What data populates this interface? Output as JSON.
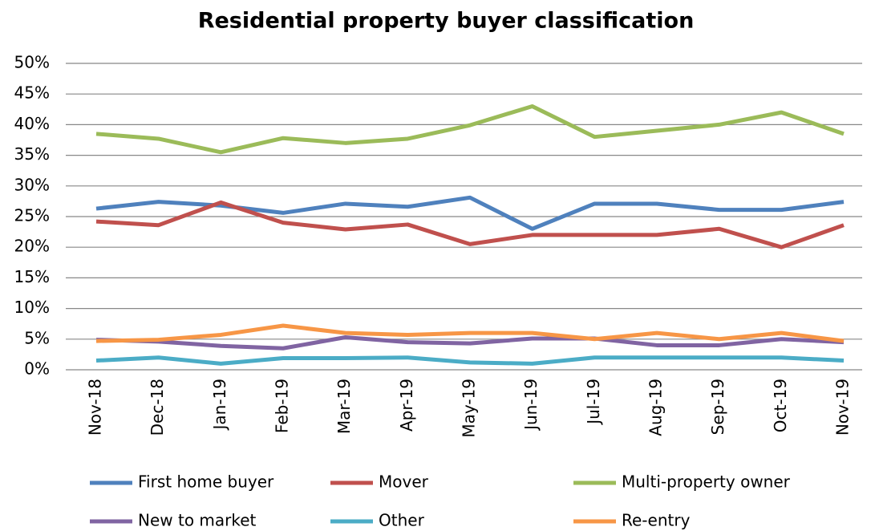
{
  "chart_data": {
    "type": "line",
    "title": "Residential property buyer classification",
    "categories": [
      "Nov-18",
      "Dec-18",
      "Jan-19",
      "Feb-19",
      "Mar-19",
      "Apr-19",
      "May-19",
      "Jun-19",
      "Jul-19",
      "Aug-19",
      "Sep-19",
      "Oct-19",
      "Nov-19"
    ],
    "series": [
      {
        "name": "First home buyer",
        "color": "#4f81bd",
        "values": [
          26.3,
          27.4,
          26.8,
          25.6,
          27.1,
          26.6,
          28.1,
          23.0,
          27.1,
          27.1,
          26.1,
          26.1,
          27.4
        ]
      },
      {
        "name": "Mover",
        "color": "#c0504d",
        "values": [
          24.2,
          23.6,
          27.3,
          24.0,
          22.9,
          23.7,
          20.5,
          22.0,
          22.0,
          22.0,
          23.0,
          20.0,
          23.6
        ]
      },
      {
        "name": "Multi-property owner",
        "color": "#9bbb59",
        "values": [
          38.5,
          37.7,
          35.5,
          37.8,
          37.0,
          37.7,
          39.9,
          43.0,
          38.0,
          39.0,
          40.0,
          42.0,
          38.5
        ]
      },
      {
        "name": "New to market",
        "color": "#8064a2",
        "values": [
          4.9,
          4.6,
          3.9,
          3.5,
          5.3,
          4.5,
          4.3,
          5.1,
          5.1,
          4.0,
          4.0,
          5.0,
          4.5
        ]
      },
      {
        "name": "Other",
        "color": "#4bacc6",
        "values": [
          1.5,
          2.0,
          1.0,
          1.9,
          1.9,
          2.0,
          1.2,
          1.0,
          2.0,
          2.0,
          2.0,
          2.0,
          1.5
        ]
      },
      {
        "name": "Re-entry",
        "color": "#f79646",
        "values": [
          4.7,
          4.9,
          5.7,
          7.2,
          6.0,
          5.7,
          6.0,
          6.0,
          5.0,
          6.0,
          5.0,
          6.0,
          4.7
        ]
      }
    ],
    "ylim": [
      0,
      50
    ],
    "yticks": [
      {
        "value": 0,
        "label": "0%"
      },
      {
        "value": 5,
        "label": "5%"
      },
      {
        "value": 10,
        "label": "10%"
      },
      {
        "value": 15,
        "label": "15%"
      },
      {
        "value": 20,
        "label": "20%"
      },
      {
        "value": 25,
        "label": "25%"
      },
      {
        "value": 30,
        "label": "30%"
      },
      {
        "value": 35,
        "label": "35%"
      },
      {
        "value": 40,
        "label": "40%"
      },
      {
        "value": 45,
        "label": "45%"
      },
      {
        "value": 50,
        "label": "50%"
      }
    ],
    "grid": true,
    "legend": "bottom"
  }
}
